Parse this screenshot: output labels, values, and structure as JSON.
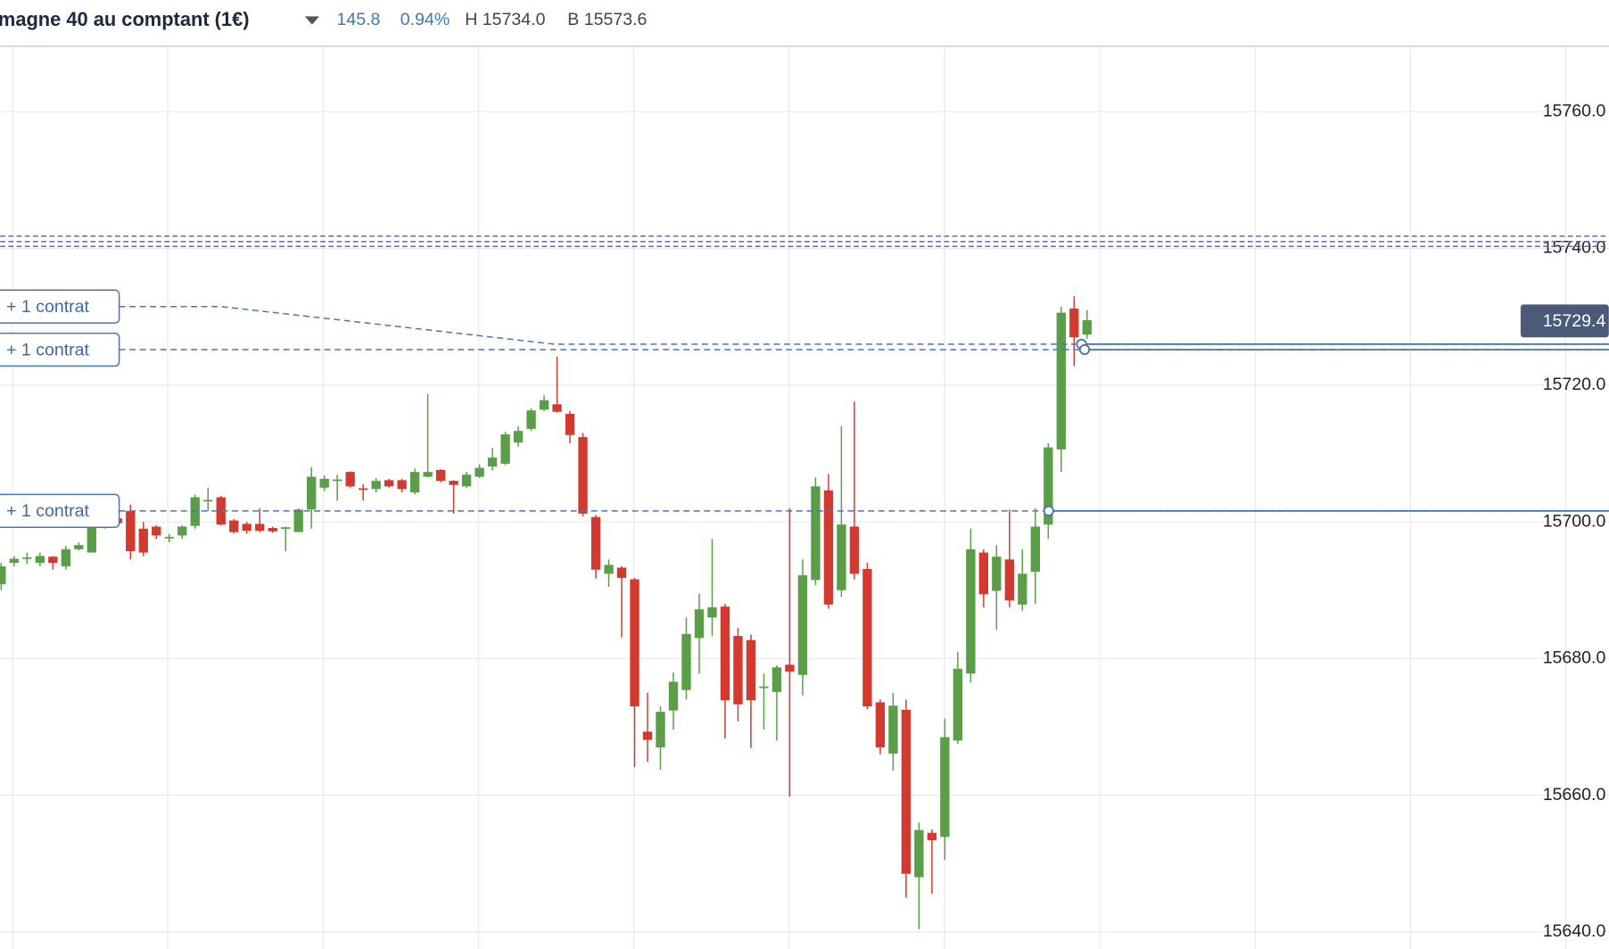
{
  "header": {
    "instrument": "magne 40 au comptant (1€)",
    "change": "145.8",
    "change_pct": "0.94%",
    "high": "H 15734.0",
    "low": "B 15573.6"
  },
  "chart_data": {
    "type": "candlestick",
    "up_color": "#5a9e47",
    "down_color": "#d33a2f",
    "ylim": [
      15637.5,
      15769.6
    ],
    "yticks": [
      {
        "value": 15640,
        "label": "15640.0"
      },
      {
        "value": 15660,
        "label": "15660.0"
      },
      {
        "value": 15680,
        "label": "15680.0"
      },
      {
        "value": 15700,
        "label": "15700.0"
      },
      {
        "value": 15720,
        "label": "15720.0"
      },
      {
        "value": 15740,
        "label": "15740.0"
      },
      {
        "value": 15760,
        "label": "15760.0"
      }
    ],
    "grid": true,
    "last_price": 15729.4,
    "levels": [
      15741.8,
      15741.0,
      15740.3
    ],
    "positions": [
      {
        "label": "+ 1 contrat",
        "value": 15731.5,
        "target": 15726.0
      },
      {
        "label": "+ 1 contrat",
        "value": 15725.2,
        "target": 15725.2
      },
      {
        "label": "+ 1 contrat",
        "value": 15701.6,
        "target": 15701.6
      }
    ],
    "open": [
      15690.9,
      15694,
      15694.7,
      15694,
      15694.9,
      15693.5,
      15696,
      15695.5,
      15699.3,
      15700.5,
      15701.6,
      15699,
      15699.3,
      15697.7,
      15698,
      15699.4,
      15703.1,
      15703.6,
      15700.2,
      15699.7,
      15699.7,
      15699.1,
      15699.1,
      15698.5,
      15701.8,
      15705,
      15706.1,
      15707.3,
      15704.9,
      15704.8,
      15706.1,
      15706.1,
      15704.3,
      15706.6,
      15707.6,
      15706,
      15705.2,
      15706.6,
      15708.1,
      15708.5,
      15711.6,
      15713.6,
      15716.4,
      15717.2,
      15715.8,
      15712.4,
      15700.7,
      15692.4,
      15693.3,
      15691.6,
      15669.3,
      15667,
      15672.4,
      15675.4,
      15683,
      15686,
      15687.6,
      15683.3,
      15682.7,
      15675.8,
      15675.1,
      15679.1,
      15677.6,
      15691.5,
      15704.6,
      15690,
      15699.3,
      15693.1,
      15673.6,
      15666.1,
      15672.5,
      15648,
      15654.5,
      15653.9,
      15668,
      15677.8,
      15695.5,
      15689.9,
      15694.5,
      15687.9,
      15692.7,
      15699.6,
      15710.6,
      15731.2,
      15727.4
    ],
    "high": [
      15694,
      15695,
      15695.5,
      15695.5,
      15695,
      15696.5,
      15697,
      15700.5,
      15700.8,
      15701,
      15702.5,
      15700,
      15699.5,
      15698.2,
      15699.5,
      15704,
      15705,
      15703.8,
      15700.4,
      15700,
      15702,
      15699.3,
      15699.3,
      15702,
      15708,
      15706.8,
      15706.9,
      15707.4,
      15705.5,
      15706.4,
      15706.3,
      15706.3,
      15707.8,
      15718.7,
      15707.7,
      15706.1,
      15707.3,
      15708.4,
      15710.8,
      15713.2,
      15714,
      15716.6,
      15718.5,
      15724.2,
      15716.2,
      15713,
      15701,
      15694.5,
      15693.5,
      15691.8,
      15675,
      15673,
      15678,
      15686,
      15689.5,
      15697.5,
      15688,
      15684.5,
      15683.5,
      15677.8,
      15679,
      15702,
      15694.5,
      15706.5,
      15707,
      15714,
      15717.6,
      15694,
      15674,
      15675,
      15674,
      15656,
      15655,
      15671.2,
      15681,
      15699,
      15696,
      15696.6,
      15701.8,
      15696,
      15702,
      15711.5,
      15731.5,
      15733,
      15731
    ],
    "low": [
      15690,
      15693.5,
      15693.8,
      15693.5,
      15693,
      15693,
      15695.8,
      15695.5,
      15699,
      15699.5,
      15694.5,
      15695,
      15697.5,
      15697,
      15697.5,
      15699,
      15701.6,
      15699.5,
      15698.3,
      15698.3,
      15698.5,
      15698.4,
      15695.7,
      15698.5,
      15699,
      15704.5,
      15703.1,
      15705,
      15703.1,
      15704.3,
      15705,
      15704.3,
      15704,
      15706.5,
      15705.8,
      15701.2,
      15705,
      15706.4,
      15707.5,
      15708.3,
      15711,
      15713.3,
      15716.2,
      15716,
      15711.5,
      15700.8,
      15691.7,
      15690.5,
      15683.1,
      15664.1,
      15664.9,
      15663.7,
      15669.6,
      15674,
      15677.8,
      15683.3,
      15668.3,
      15670.8,
      15666.9,
      15669.6,
      15668,
      15659.8,
      15674.6,
      15690.7,
      15687.3,
      15689,
      15691.6,
      15672.6,
      15666,
      15663.6,
      15645,
      15640.4,
      15645.6,
      15650.5,
      15667.5,
      15676.5,
      15687.5,
      15684.2,
      15687.5,
      15687,
      15688,
      15697.5,
      15707.3,
      15722.8,
      15726.8
    ],
    "close": [
      15693.5,
      15694.6,
      15694.8,
      15695,
      15694,
      15696,
      15696.6,
      15699.3,
      15700.5,
      15699.8,
      15695.7,
      15695.5,
      15698,
      15697.8,
      15699.3,
      15703.6,
      15703.2,
      15699.6,
      15698.5,
      15698.7,
      15698.7,
      15698.6,
      15699.2,
      15701.8,
      15706.6,
      15706.3,
      15706.2,
      15705.2,
      15704.8,
      15706,
      15705.2,
      15704.8,
      15707.3,
      15707.3,
      15706,
      15705.4,
      15706.9,
      15707.9,
      15709.4,
      15712.8,
      15713.3,
      15716.3,
      15717.8,
      15716.1,
      15712.7,
      15701.2,
      15693,
      15693.7,
      15691.8,
      15673,
      15668.1,
      15672.2,
      15676.6,
      15683.6,
      15687.2,
      15687.5,
      15673.9,
      15673.3,
      15673.9,
      15675.9,
      15678.7,
      15678.1,
      15692.2,
      15705.2,
      15687.9,
      15699.6,
      15692.4,
      15673,
      15667,
      15673.1,
      15648.5,
      15654.9,
      15653.4,
      15668.5,
      15678.5,
      15696,
      15689.4,
      15694.9,
      15688.5,
      15692.4,
      15699.3,
      15710.9,
      15730.6,
      15727,
      15729.5
    ]
  }
}
